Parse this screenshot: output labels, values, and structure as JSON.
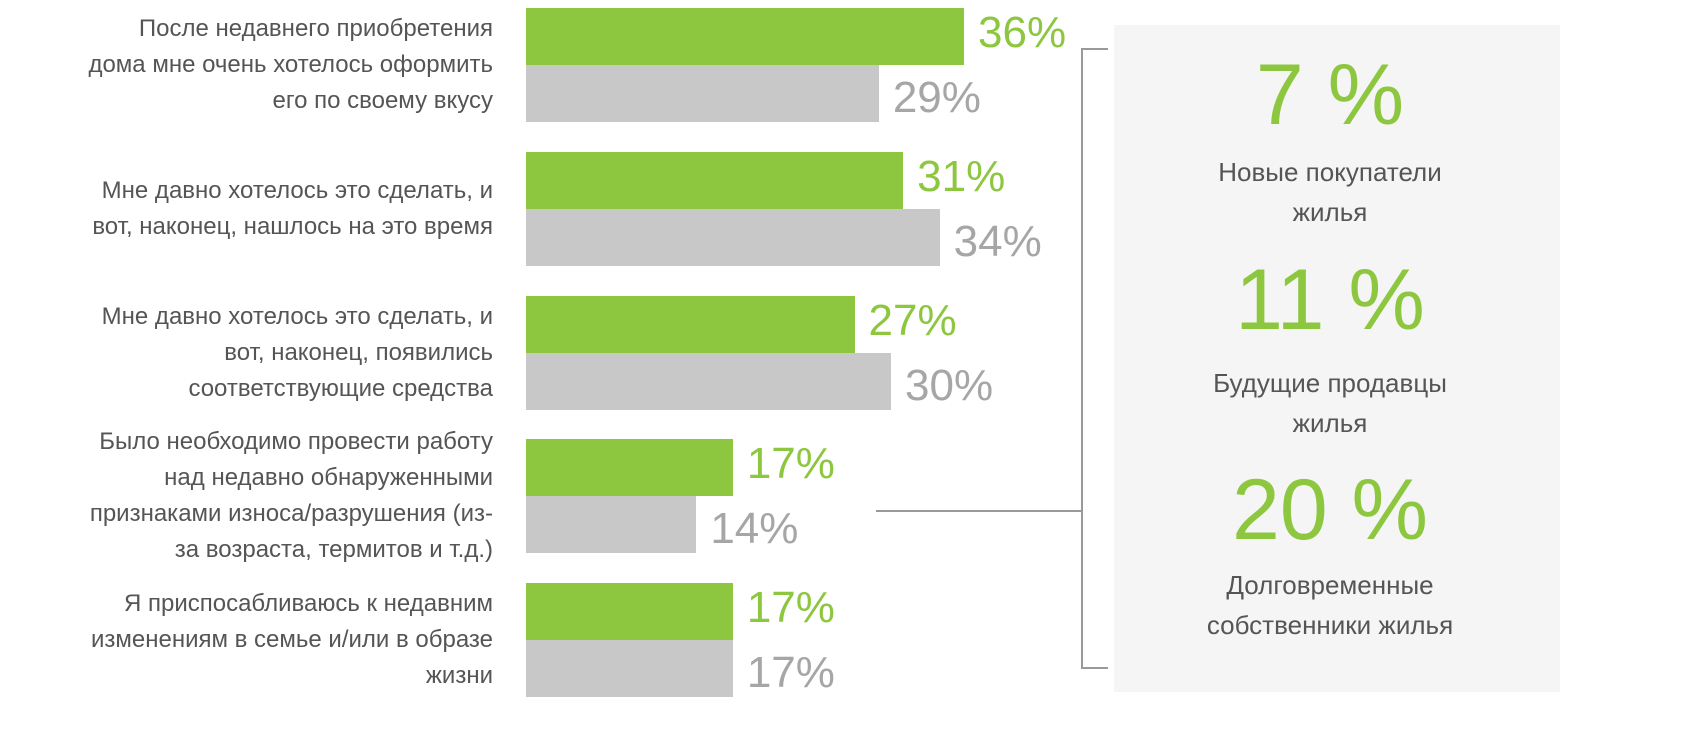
{
  "chart_data": {
    "type": "bar",
    "orientation": "horizontal",
    "categories": [
      "После недавнего приобретения\nдома мне очень хотелось оформить\nего по своему вкусу",
      "Мне давно хотелось это сделать, и\nвот, наконец, нашлось на это время",
      "Мне давно хотелось это сделать, и\nвот, наконец, появились\nсоответствующие средства",
      "Было необходимо провести работу\nнад недавно обнаруженными\nпризнаками износа/разрушения (из-\nза возраста, термитов и т.д.)",
      "Я приспосабливаюсь к недавним\nизменениям в семье и/или в образе\nжизни"
    ],
    "series": [
      {
        "color": "#8dc63f",
        "label_color": "#8dc63f",
        "values": [
          36,
          31,
          27,
          17,
          17
        ],
        "value_labels": [
          "36%",
          "31%",
          "27%",
          "17%",
          "17%"
        ]
      },
      {
        "color": "#c8c8c8",
        "label_color": "#a6a6a6",
        "values": [
          29,
          34,
          30,
          14,
          17
        ],
        "value_labels": [
          "29%",
          "34%",
          "30%",
          "14%",
          "17%"
        ]
      }
    ]
  },
  "panel": {
    "items": [
      {
        "figure": "7 %",
        "caption": "Новые покупатели\nжилья"
      },
      {
        "figure": "11 %",
        "caption": "Будущие продавцы\nжилья"
      },
      {
        "figure": "20 %",
        "caption": "Долговременные\nсобственники жилья"
      }
    ]
  }
}
